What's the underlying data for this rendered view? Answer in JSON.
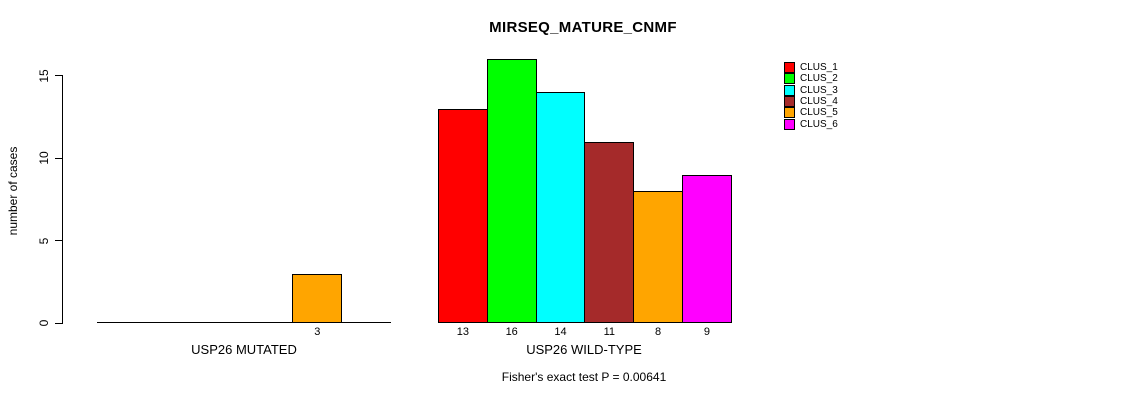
{
  "title": "MIRSEQ_MATURE_CNMF",
  "chart_data": {
    "type": "bar",
    "title": "MIRSEQ_MATURE_CNMF",
    "ylabel": "number of cases",
    "ylim": [
      0,
      16
    ],
    "yticks": [
      0,
      5,
      10,
      15
    ],
    "grid": false,
    "legend_position": "right",
    "categories": [
      "USP26 MUTATED",
      "USP26 WILD-TYPE"
    ],
    "series": [
      {
        "name": "CLUS_1",
        "color": "#FF0000",
        "values": [
          0,
          13
        ]
      },
      {
        "name": "CLUS_2",
        "color": "#00FF00",
        "values": [
          0,
          16
        ]
      },
      {
        "name": "CLUS_3",
        "color": "#00FFFF",
        "values": [
          0,
          14
        ]
      },
      {
        "name": "CLUS_4",
        "color": "#A52A2A",
        "values": [
          0,
          11
        ]
      },
      {
        "name": "CLUS_5",
        "color": "#FFA500",
        "values": [
          3,
          8
        ]
      },
      {
        "name": "CLUS_6",
        "color": "#FF00FF",
        "values": [
          0,
          9
        ]
      }
    ],
    "bar_value_labels": {
      "group_0": [
        "3"
      ],
      "group_1": [
        "13",
        "16",
        "14",
        "11",
        "8",
        "9"
      ]
    },
    "annotation": "Fisher's exact test P = 0.00641"
  }
}
